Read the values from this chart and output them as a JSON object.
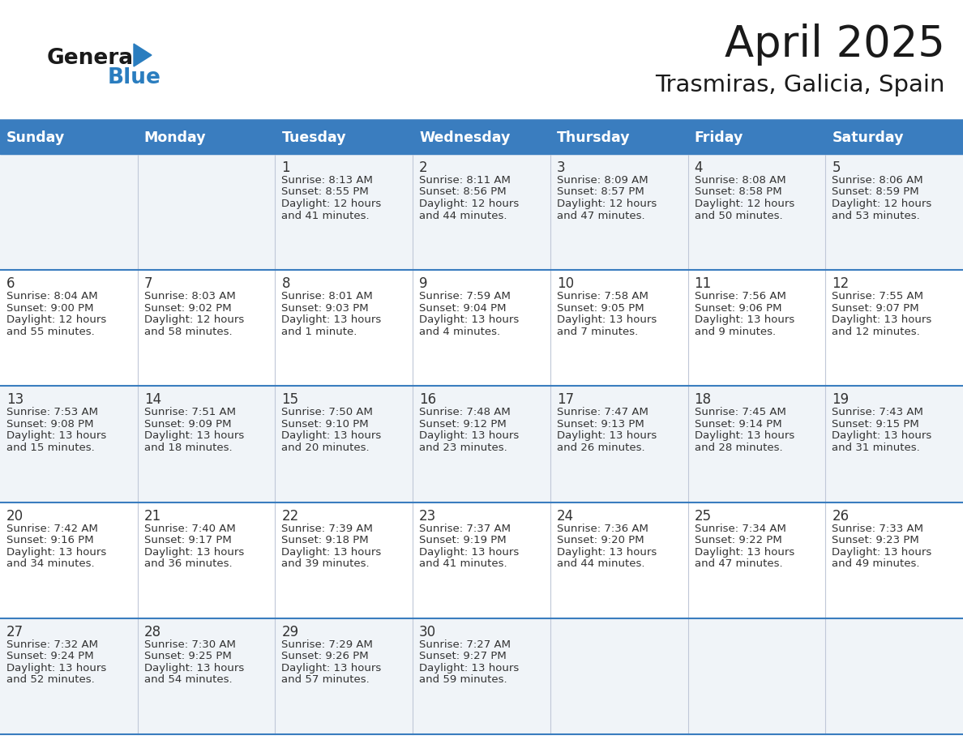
{
  "title": "April 2025",
  "subtitle": "Trasmiras, Galicia, Spain",
  "header_bg_color": "#3a7dbf",
  "header_text_color": "#ffffff",
  "header_font_size": 12.5,
  "day_names": [
    "Sunday",
    "Monday",
    "Tuesday",
    "Wednesday",
    "Thursday",
    "Friday",
    "Saturday"
  ],
  "title_font_size": 38,
  "subtitle_font_size": 21,
  "bg_color": "#ffffff",
  "row0_color": "#f0f4f8",
  "row1_color": "#ffffff",
  "cell_text_color": "#333333",
  "divider_color": "#3a7dbf",
  "divider_thick": 4,
  "divider_thin": 1.5,
  "logo_dark_color": "#1a1a1a",
  "logo_blue_color": "#2a7dbf",
  "logo_font_size": 19,
  "day_num_font_size": 12,
  "cell_info_font_size": 9.5,
  "weeks": [
    [
      {
        "day": "",
        "sunrise": "",
        "sunset": "",
        "daylight": ""
      },
      {
        "day": "",
        "sunrise": "",
        "sunset": "",
        "daylight": ""
      },
      {
        "day": "1",
        "sunrise": "Sunrise: 8:13 AM",
        "sunset": "Sunset: 8:55 PM",
        "daylight": "Daylight: 12 hours\nand 41 minutes."
      },
      {
        "day": "2",
        "sunrise": "Sunrise: 8:11 AM",
        "sunset": "Sunset: 8:56 PM",
        "daylight": "Daylight: 12 hours\nand 44 minutes."
      },
      {
        "day": "3",
        "sunrise": "Sunrise: 8:09 AM",
        "sunset": "Sunset: 8:57 PM",
        "daylight": "Daylight: 12 hours\nand 47 minutes."
      },
      {
        "day": "4",
        "sunrise": "Sunrise: 8:08 AM",
        "sunset": "Sunset: 8:58 PM",
        "daylight": "Daylight: 12 hours\nand 50 minutes."
      },
      {
        "day": "5",
        "sunrise": "Sunrise: 8:06 AM",
        "sunset": "Sunset: 8:59 PM",
        "daylight": "Daylight: 12 hours\nand 53 minutes."
      }
    ],
    [
      {
        "day": "6",
        "sunrise": "Sunrise: 8:04 AM",
        "sunset": "Sunset: 9:00 PM",
        "daylight": "Daylight: 12 hours\nand 55 minutes."
      },
      {
        "day": "7",
        "sunrise": "Sunrise: 8:03 AM",
        "sunset": "Sunset: 9:02 PM",
        "daylight": "Daylight: 12 hours\nand 58 minutes."
      },
      {
        "day": "8",
        "sunrise": "Sunrise: 8:01 AM",
        "sunset": "Sunset: 9:03 PM",
        "daylight": "Daylight: 13 hours\nand 1 minute."
      },
      {
        "day": "9",
        "sunrise": "Sunrise: 7:59 AM",
        "sunset": "Sunset: 9:04 PM",
        "daylight": "Daylight: 13 hours\nand 4 minutes."
      },
      {
        "day": "10",
        "sunrise": "Sunrise: 7:58 AM",
        "sunset": "Sunset: 9:05 PM",
        "daylight": "Daylight: 13 hours\nand 7 minutes."
      },
      {
        "day": "11",
        "sunrise": "Sunrise: 7:56 AM",
        "sunset": "Sunset: 9:06 PM",
        "daylight": "Daylight: 13 hours\nand 9 minutes."
      },
      {
        "day": "12",
        "sunrise": "Sunrise: 7:55 AM",
        "sunset": "Sunset: 9:07 PM",
        "daylight": "Daylight: 13 hours\nand 12 minutes."
      }
    ],
    [
      {
        "day": "13",
        "sunrise": "Sunrise: 7:53 AM",
        "sunset": "Sunset: 9:08 PM",
        "daylight": "Daylight: 13 hours\nand 15 minutes."
      },
      {
        "day": "14",
        "sunrise": "Sunrise: 7:51 AM",
        "sunset": "Sunset: 9:09 PM",
        "daylight": "Daylight: 13 hours\nand 18 minutes."
      },
      {
        "day": "15",
        "sunrise": "Sunrise: 7:50 AM",
        "sunset": "Sunset: 9:10 PM",
        "daylight": "Daylight: 13 hours\nand 20 minutes."
      },
      {
        "day": "16",
        "sunrise": "Sunrise: 7:48 AM",
        "sunset": "Sunset: 9:12 PM",
        "daylight": "Daylight: 13 hours\nand 23 minutes."
      },
      {
        "day": "17",
        "sunrise": "Sunrise: 7:47 AM",
        "sunset": "Sunset: 9:13 PM",
        "daylight": "Daylight: 13 hours\nand 26 minutes."
      },
      {
        "day": "18",
        "sunrise": "Sunrise: 7:45 AM",
        "sunset": "Sunset: 9:14 PM",
        "daylight": "Daylight: 13 hours\nand 28 minutes."
      },
      {
        "day": "19",
        "sunrise": "Sunrise: 7:43 AM",
        "sunset": "Sunset: 9:15 PM",
        "daylight": "Daylight: 13 hours\nand 31 minutes."
      }
    ],
    [
      {
        "day": "20",
        "sunrise": "Sunrise: 7:42 AM",
        "sunset": "Sunset: 9:16 PM",
        "daylight": "Daylight: 13 hours\nand 34 minutes."
      },
      {
        "day": "21",
        "sunrise": "Sunrise: 7:40 AM",
        "sunset": "Sunset: 9:17 PM",
        "daylight": "Daylight: 13 hours\nand 36 minutes."
      },
      {
        "day": "22",
        "sunrise": "Sunrise: 7:39 AM",
        "sunset": "Sunset: 9:18 PM",
        "daylight": "Daylight: 13 hours\nand 39 minutes."
      },
      {
        "day": "23",
        "sunrise": "Sunrise: 7:37 AM",
        "sunset": "Sunset: 9:19 PM",
        "daylight": "Daylight: 13 hours\nand 41 minutes."
      },
      {
        "day": "24",
        "sunrise": "Sunrise: 7:36 AM",
        "sunset": "Sunset: 9:20 PM",
        "daylight": "Daylight: 13 hours\nand 44 minutes."
      },
      {
        "day": "25",
        "sunrise": "Sunrise: 7:34 AM",
        "sunset": "Sunset: 9:22 PM",
        "daylight": "Daylight: 13 hours\nand 47 minutes."
      },
      {
        "day": "26",
        "sunrise": "Sunrise: 7:33 AM",
        "sunset": "Sunset: 9:23 PM",
        "daylight": "Daylight: 13 hours\nand 49 minutes."
      }
    ],
    [
      {
        "day": "27",
        "sunrise": "Sunrise: 7:32 AM",
        "sunset": "Sunset: 9:24 PM",
        "daylight": "Daylight: 13 hours\nand 52 minutes."
      },
      {
        "day": "28",
        "sunrise": "Sunrise: 7:30 AM",
        "sunset": "Sunset: 9:25 PM",
        "daylight": "Daylight: 13 hours\nand 54 minutes."
      },
      {
        "day": "29",
        "sunrise": "Sunrise: 7:29 AM",
        "sunset": "Sunset: 9:26 PM",
        "daylight": "Daylight: 13 hours\nand 57 minutes."
      },
      {
        "day": "30",
        "sunrise": "Sunrise: 7:27 AM",
        "sunset": "Sunset: 9:27 PM",
        "daylight": "Daylight: 13 hours\nand 59 minutes."
      },
      {
        "day": "",
        "sunrise": "",
        "sunset": "",
        "daylight": ""
      },
      {
        "day": "",
        "sunrise": "",
        "sunset": "",
        "daylight": ""
      },
      {
        "day": "",
        "sunrise": "",
        "sunset": "",
        "daylight": ""
      }
    ]
  ]
}
